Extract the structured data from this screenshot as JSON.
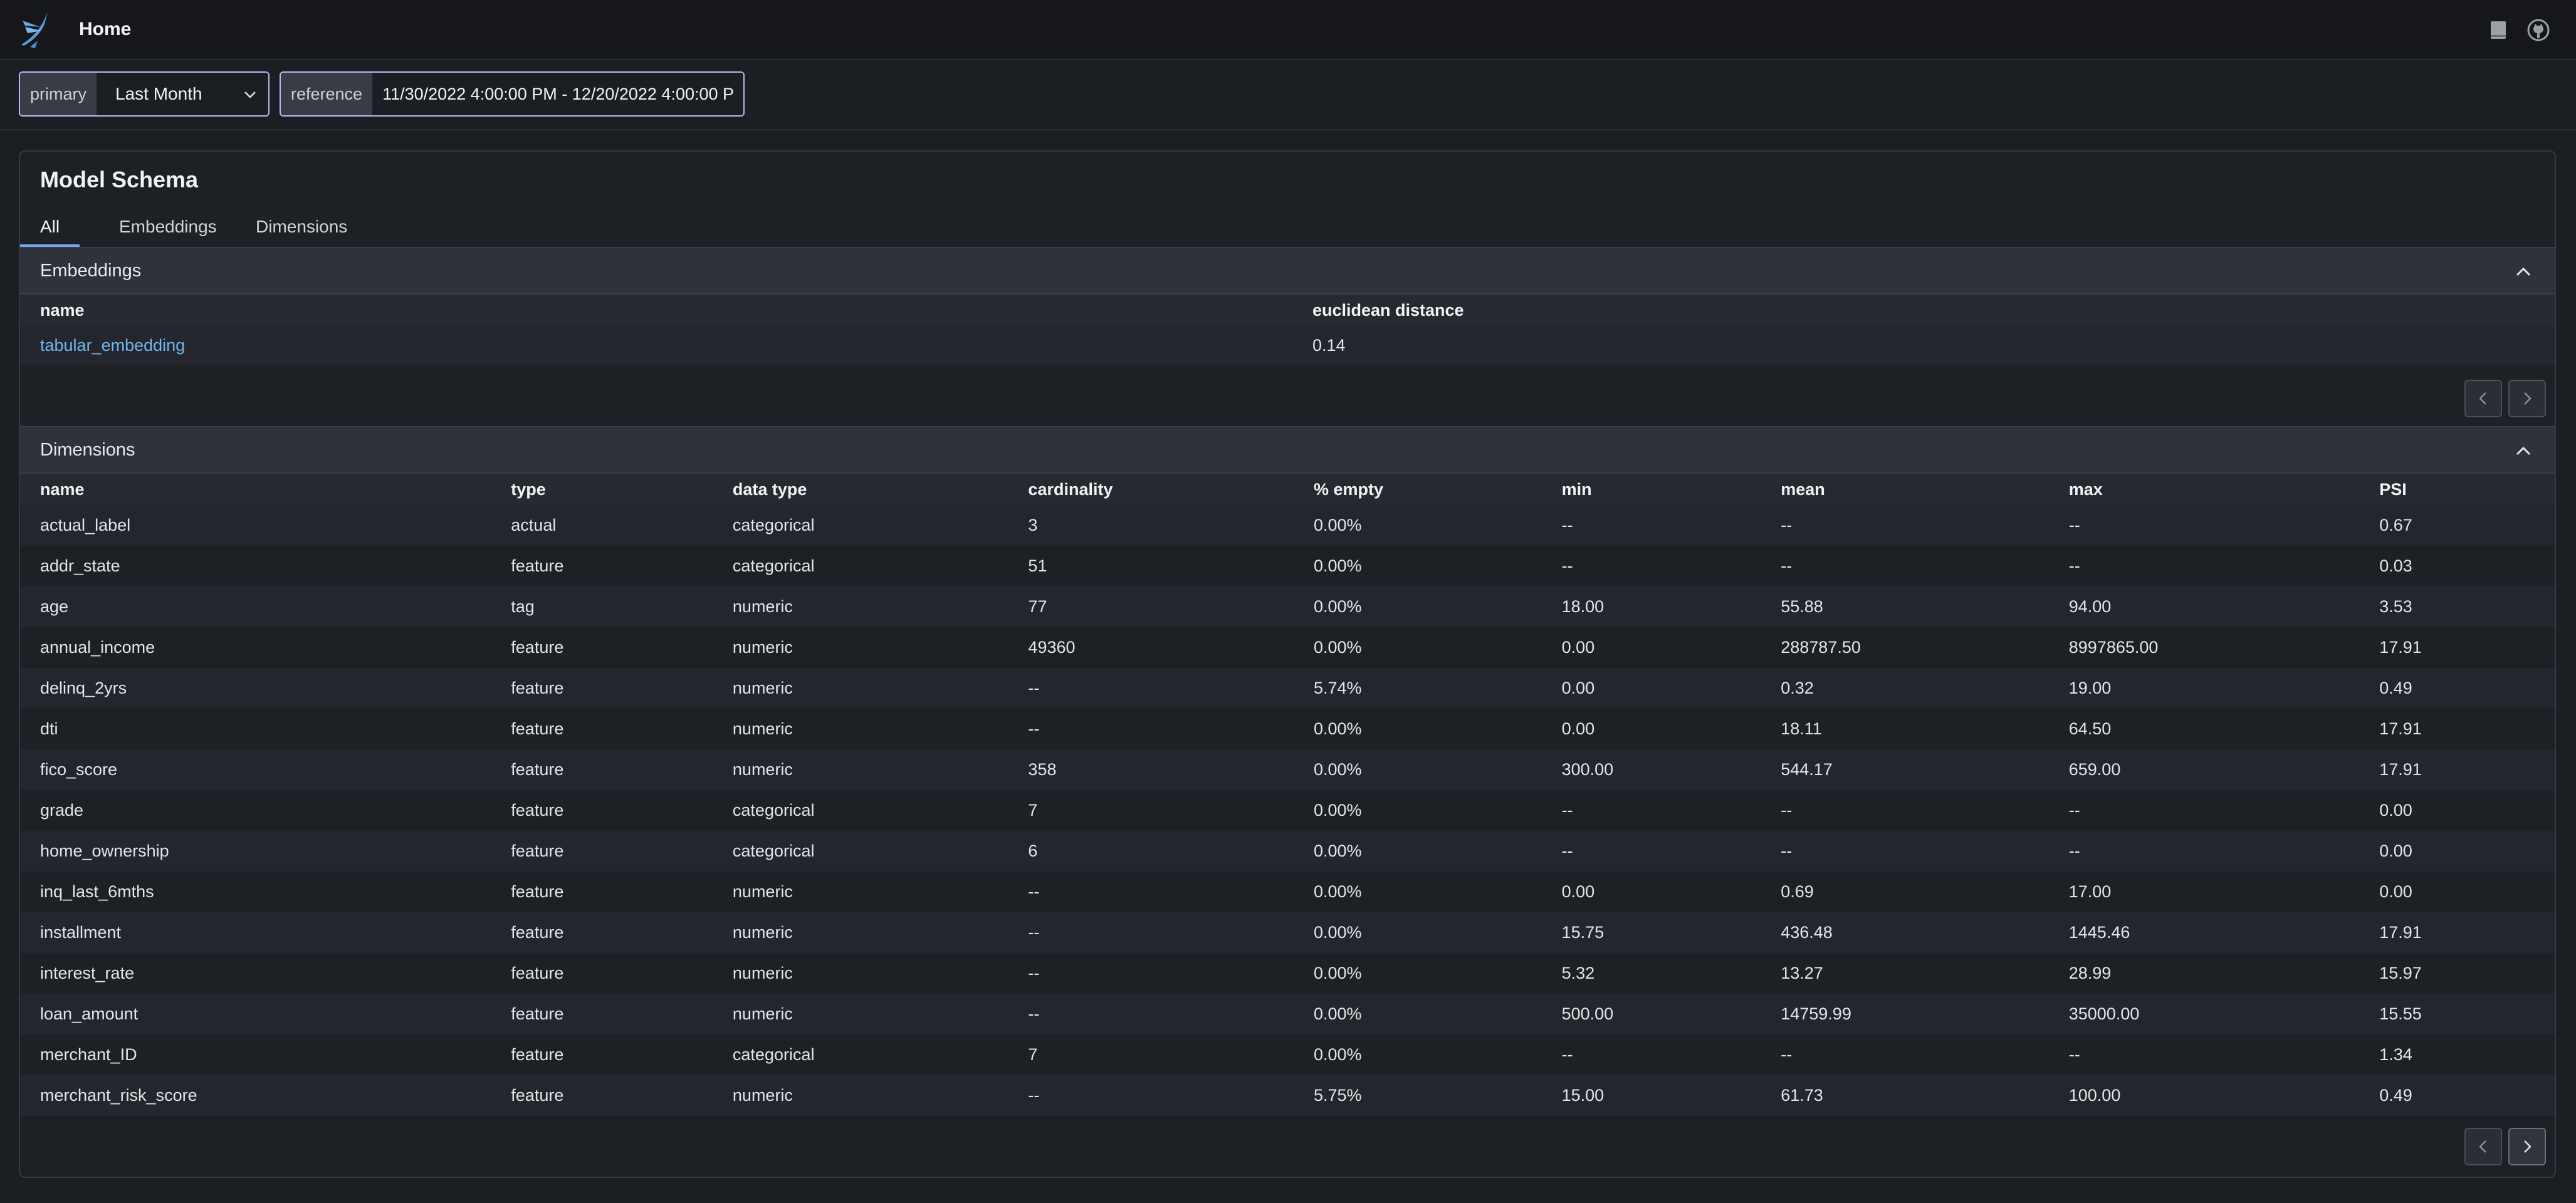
{
  "nav": {
    "title": "Home",
    "icons": [
      "bird-logo-icon",
      "book-icon",
      "github-icon"
    ]
  },
  "time_range": {
    "primary_label": "primary",
    "primary_value": "Last Month",
    "reference_label": "reference",
    "reference_value": "11/30/2022 4:00:00 PM - 12/20/2022 4:00:00 P"
  },
  "schema": {
    "title": "Model Schema",
    "tabs": [
      "All",
      "Embeddings",
      "Dimensions"
    ],
    "active_tab": "All",
    "embeddings": {
      "label": "Embeddings",
      "columns": [
        "name",
        "euclidean distance"
      ],
      "rows": [
        {
          "name": "tabular_embedding",
          "distance": "0.14"
        }
      ]
    },
    "dimensions": {
      "label": "Dimensions",
      "columns": [
        "name",
        "type",
        "data type",
        "cardinality",
        "% empty",
        "min",
        "mean",
        "max",
        "PSI"
      ],
      "rows": [
        [
          "actual_label",
          "actual",
          "categorical",
          "3",
          "0.00%",
          "--",
          "--",
          "--",
          "0.67"
        ],
        [
          "addr_state",
          "feature",
          "categorical",
          "51",
          "0.00%",
          "--",
          "--",
          "--",
          "0.03"
        ],
        [
          "age",
          "tag",
          "numeric",
          "77",
          "0.00%",
          "18.00",
          "55.88",
          "94.00",
          "3.53"
        ],
        [
          "annual_income",
          "feature",
          "numeric",
          "49360",
          "0.00%",
          "0.00",
          "288787.50",
          "8997865.00",
          "17.91"
        ],
        [
          "delinq_2yrs",
          "feature",
          "numeric",
          "--",
          "5.74%",
          "0.00",
          "0.32",
          "19.00",
          "0.49"
        ],
        [
          "dti",
          "feature",
          "numeric",
          "--",
          "0.00%",
          "0.00",
          "18.11",
          "64.50",
          "17.91"
        ],
        [
          "fico_score",
          "feature",
          "numeric",
          "358",
          "0.00%",
          "300.00",
          "544.17",
          "659.00",
          "17.91"
        ],
        [
          "grade",
          "feature",
          "categorical",
          "7",
          "0.00%",
          "--",
          "--",
          "--",
          "0.00"
        ],
        [
          "home_ownership",
          "feature",
          "categorical",
          "6",
          "0.00%",
          "--",
          "--",
          "--",
          "0.00"
        ],
        [
          "inq_last_6mths",
          "feature",
          "numeric",
          "--",
          "0.00%",
          "0.00",
          "0.69",
          "17.00",
          "0.00"
        ],
        [
          "installment",
          "feature",
          "numeric",
          "--",
          "0.00%",
          "15.75",
          "436.48",
          "1445.46",
          "17.91"
        ],
        [
          "interest_rate",
          "feature",
          "numeric",
          "--",
          "0.00%",
          "5.32",
          "13.27",
          "28.99",
          "15.97"
        ],
        [
          "loan_amount",
          "feature",
          "numeric",
          "--",
          "0.00%",
          "500.00",
          "14759.99",
          "35000.00",
          "15.55"
        ],
        [
          "merchant_ID",
          "feature",
          "categorical",
          "7",
          "0.00%",
          "--",
          "--",
          "--",
          "1.34"
        ],
        [
          "merchant_risk_score",
          "feature",
          "numeric",
          "--",
          "5.75%",
          "15.00",
          "61.73",
          "100.00",
          "0.49"
        ]
      ]
    }
  },
  "colors": {
    "accent": "#72a7f2",
    "link": "#72b6f0",
    "range_border": "#bcb8f7",
    "background": "#1b1e23"
  }
}
